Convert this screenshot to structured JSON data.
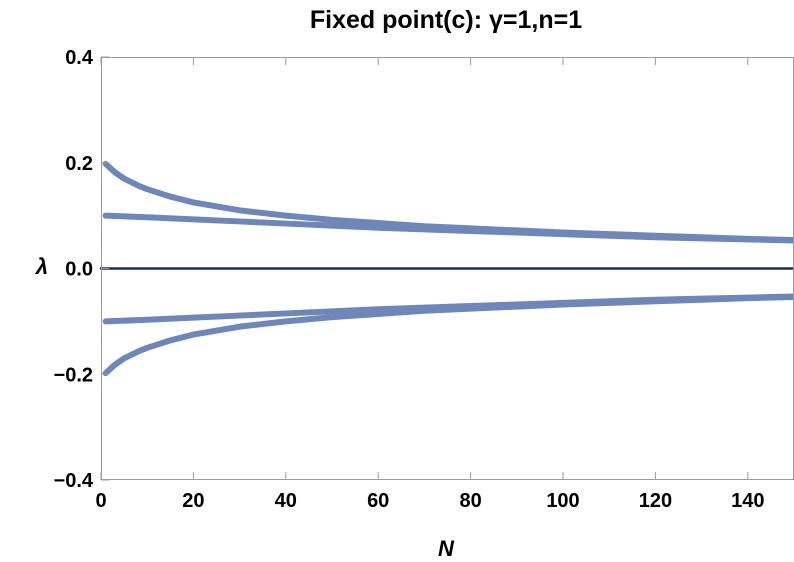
{
  "chart_data": {
    "type": "line",
    "title": "Fixed point(c): γ=1,n=1",
    "xlabel": "N",
    "ylabel": "λ",
    "xlim": [
      0,
      150
    ],
    "ylim": [
      -0.4,
      0.4
    ],
    "x_ticks": [
      0,
      20,
      40,
      60,
      80,
      100,
      120,
      140
    ],
    "x_tick_labels": [
      "0",
      "20",
      "40",
      "60",
      "80",
      "100",
      "120",
      "140"
    ],
    "y_ticks": [
      -0.4,
      -0.2,
      0.0,
      0.2,
      0.4
    ],
    "y_tick_labels": [
      "−0.4",
      "−0.2",
      "0.0",
      "0.2",
      "0.4"
    ],
    "grid": false,
    "legend": "none",
    "series": [
      {
        "color": "#6f86b8",
        "x": [
          1,
          3,
          5,
          8,
          10,
          15,
          20,
          30,
          40,
          50,
          60,
          70,
          80,
          90,
          100,
          110,
          120,
          130,
          140,
          150
        ],
        "y": [
          0.198,
          0.182,
          0.17,
          0.157,
          0.15,
          0.136,
          0.125,
          0.11,
          0.1,
          0.092,
          0.086,
          0.08,
          0.076,
          0.072,
          0.068,
          0.065,
          0.062,
          0.059,
          0.056,
          0.054
        ]
      },
      {
        "color": "#6f86b8",
        "x": [
          1,
          10,
          20,
          30,
          40,
          50,
          60,
          70,
          80,
          90,
          100,
          110,
          120,
          130,
          140,
          150
        ],
        "y": [
          0.1,
          0.097,
          0.093,
          0.089,
          0.085,
          0.081,
          0.077,
          0.074,
          0.071,
          0.068,
          0.065,
          0.062,
          0.059,
          0.057,
          0.055,
          0.053
        ]
      },
      {
        "color": "#6f86b8",
        "x": [
          1,
          10,
          20,
          30,
          40,
          50,
          60,
          70,
          80,
          90,
          100,
          110,
          120,
          130,
          140,
          150
        ],
        "y": [
          -0.1,
          -0.097,
          -0.093,
          -0.089,
          -0.085,
          -0.081,
          -0.077,
          -0.074,
          -0.071,
          -0.068,
          -0.065,
          -0.062,
          -0.059,
          -0.057,
          -0.055,
          -0.053
        ]
      },
      {
        "color": "#6f86b8",
        "x": [
          1,
          3,
          5,
          8,
          10,
          15,
          20,
          30,
          40,
          50,
          60,
          70,
          80,
          90,
          100,
          110,
          120,
          130,
          140,
          150
        ],
        "y": [
          -0.198,
          -0.182,
          -0.17,
          -0.157,
          -0.15,
          -0.136,
          -0.125,
          -0.11,
          -0.1,
          -0.092,
          -0.086,
          -0.08,
          -0.076,
          -0.072,
          -0.068,
          -0.065,
          -0.062,
          -0.059,
          -0.056,
          -0.054
        ]
      },
      {
        "color": "#1f2d4d",
        "x": [
          0,
          150
        ],
        "y": [
          0.0,
          0.0
        ]
      }
    ]
  }
}
